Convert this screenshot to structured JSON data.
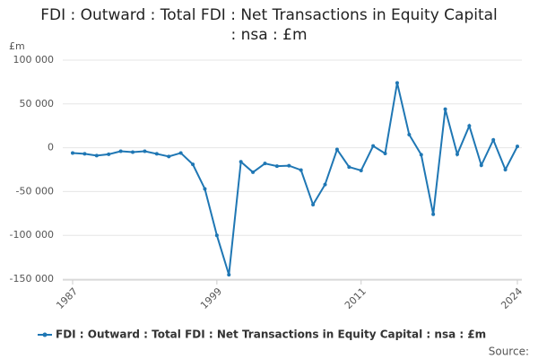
{
  "chart_data": {
    "type": "line",
    "title": "FDI : Outward : Total FDI : Net Transactions in Equity Capital : nsa : £m",
    "y_label": "£m",
    "source": "Source:",
    "x": [
      1987,
      1988,
      1989,
      1990,
      1991,
      1992,
      1993,
      1994,
      1995,
      1996,
      1997,
      1998,
      1999,
      2000,
      2001,
      2002,
      2003,
      2004,
      2005,
      2006,
      2007,
      2008,
      2009,
      2010,
      2011,
      2012,
      2013,
      2014,
      2015,
      2016,
      2017,
      2018,
      2019,
      2020,
      2021,
      2022,
      2023,
      2024
    ],
    "series": [
      {
        "name": "FDI : Outward : Total FDI : Net Transactions in Equity Capital : nsa : £m",
        "color": "#1f77b4",
        "values": [
          -6000,
          -7000,
          -9000,
          -7500,
          -4000,
          -5000,
          -4000,
          -7000,
          -10000,
          -6000,
          -19000,
          -47000,
          -100000,
          -145000,
          -16000,
          -28000,
          -18000,
          -21000,
          -20500,
          -25500,
          -65000,
          -42000,
          -2000,
          -22000,
          -26000,
          2000,
          -6500,
          74000,
          15000,
          -8000,
          -76000,
          44000,
          -7500,
          25000,
          -20000,
          9000,
          -25000,
          1500
        ]
      }
    ],
    "xlim": [
      1987,
      2024
    ],
    "xticks": [
      1987,
      1999,
      2011,
      2024
    ],
    "ylim": [
      -150000,
      100000
    ],
    "yticks": [
      {
        "value": -150000,
        "label": "-150 000"
      },
      {
        "value": -100000,
        "label": "-100 000"
      },
      {
        "value": -50000,
        "label": "-50 000"
      },
      0,
      {
        "value": 50000,
        "label": "50 000"
      },
      {
        "value": 100000,
        "label": "100 000"
      }
    ],
    "grid": true
  }
}
